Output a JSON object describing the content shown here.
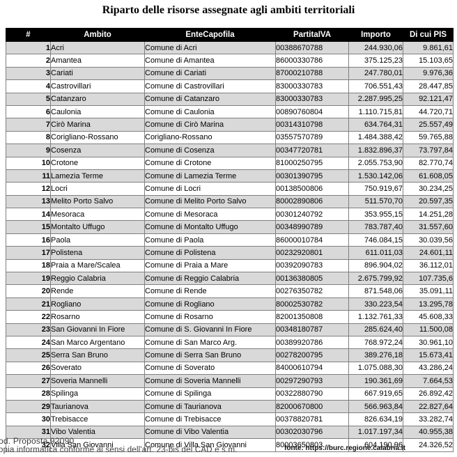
{
  "page": {
    "title": "Riparto delle risorse assegnate agli ambiti territoriali"
  },
  "table": {
    "columns": [
      "#",
      "Ambito",
      "EnteCapofila",
      "PartitaIVA",
      "Importo",
      "Di cui PIS"
    ],
    "rows": [
      [
        "1",
        "Acri",
        "Comune di Acri",
        "00388670788",
        "244.930,06",
        "9.861,61"
      ],
      [
        "2",
        "Amantea",
        "Comune di Amantea",
        "86000330786",
        "375.125,23",
        "15.103,65"
      ],
      [
        "3",
        "Cariati",
        "Comune di Cariati",
        "87000210788",
        "247.780,01",
        "9.976,36"
      ],
      [
        "4",
        "Castrovillari",
        "Comune di Castrovillari",
        "83000330783",
        "706.551,43",
        "28.447,85"
      ],
      [
        "5",
        "Catanzaro",
        "Comune di Catanzaro",
        "83000330783",
        "2.287.995,25",
        "92.121,47"
      ],
      [
        "6",
        "Caulonia",
        "Comune di Caulonia",
        "00890760804",
        "1.110.715,81",
        "44.720,71"
      ],
      [
        "7",
        "Cirò Marina",
        "Comune di Cirò Marina",
        "00314310798",
        "634.764,31",
        "25.557,49"
      ],
      [
        "8",
        "Corigliano-Rossano",
        "Corigliano-Rossano",
        "03557570789",
        "1.484.388,42",
        "59.765,88"
      ],
      [
        "9",
        "Cosenza",
        "Comune di Cosenza",
        "00347720781",
        "1.832.896,37",
        "73.797,84"
      ],
      [
        "10",
        "Crotone",
        "Comune di Crotone",
        "81000250795",
        "2.055.753,90",
        "82.770,74"
      ],
      [
        "11",
        "Lamezia Terme",
        "Comune di Lamezia Terme",
        "00301390795",
        "1.530.142,06",
        "61.608,05"
      ],
      [
        "12",
        "Locri",
        "Comune di Locri",
        "00138500806",
        "750.919,67",
        "30.234,25"
      ],
      [
        "13",
        "Melito Porto Salvo",
        "Comune di Melito Porto Salvo",
        "80002890806",
        "511.570,70",
        "20.597,35"
      ],
      [
        "14",
        "Mesoraca",
        "Comune di Mesoraca",
        "00301240792",
        "353.955,15",
        "14.251,28"
      ],
      [
        "15",
        "Montalto Uffugo",
        "Comune di Montalto Uffugo",
        "00348990789",
        "783.787,40",
        "31.557,60"
      ],
      [
        "16",
        "Paola",
        "Comune di Paola",
        "86000010784",
        "746.084,15",
        "30.039,56"
      ],
      [
        "17",
        "Polistena",
        "Comune di Polistena",
        "00232920801",
        "611.011,03",
        "24.601,11"
      ],
      [
        "18",
        "Praia a Mare/Scalea",
        "Comune di Praia a Mare",
        "00392090783",
        "896.904,02",
        "36.112,01"
      ],
      [
        "19",
        "Reggio Calabria",
        "Comune di Reggio Calabria",
        "00136380805",
        "2.675.799,92",
        "107.735,6"
      ],
      [
        "20",
        "Rende",
        "Comune di Rende",
        "00276350782",
        "871.548,06",
        "35.091,11"
      ],
      [
        "21",
        "Rogliano",
        "Comune di Rogliano",
        "80002530782",
        "330.223,54",
        "13.295,78"
      ],
      [
        "22",
        "Rosarno",
        "Comune di Rosarno",
        "82001350808",
        "1.132.761,33",
        "45.608,33"
      ],
      [
        "23",
        "San Giovanni In Fiore",
        "Comune di S. Giovanni In Fiore",
        "00348180787",
        "285.624,40",
        "11.500,08"
      ],
      [
        "24",
        "San Marco Argentano",
        "Comune di San Marco Arg.",
        "00389920786",
        "768.972,24",
        "30.961,10"
      ],
      [
        "25",
        "Serra San Bruno",
        "Comune di Serra San Bruno",
        "00278200795",
        "389.276,18",
        "15.673,41"
      ],
      [
        "26",
        "Soverato",
        "Comune di Soverato",
        "84000610794",
        "1.075.088,30",
        "43.286,24"
      ],
      [
        "27",
        "Soveria Mannelli",
        "Comune di Soveria Mannelli",
        "00297290793",
        "190.361,69",
        "7.664,53"
      ],
      [
        "28",
        "Spilinga",
        "Comune di Spilinga",
        "00322880790",
        "667.919,65",
        "26.892,42"
      ],
      [
        "29",
        "Taurianova",
        "Comune di Taurianova",
        "82000670800",
        "566.963,84",
        "22.827,64"
      ],
      [
        "30",
        "Trebisacce",
        "Comune di Trebisacce",
        "00378820781",
        "826.634,19",
        "33.282,74"
      ],
      [
        "31",
        "Vibo Valentia",
        "Comune di Vibo Valentia",
        "00302030796",
        "1.017.197,34",
        "40.955,38"
      ],
      [
        "32",
        "Villa San Giovanni",
        "Comune di Villa San Giovanni",
        "80003650803",
        "604.190,96",
        "24.326,52"
      ]
    ]
  },
  "footer": {
    "stamp_line1": "od. Proposta 92090",
    "stamp_line2": "opia informatica conforme ai sensi dell'art. 23-bis del CAD e s.m.",
    "source": "fonte: https://burc.regione.calabria.it"
  },
  "colors": {
    "header_bg": "#000000",
    "header_text": "#ffffff",
    "row_alt_bg": "#d9d9d9",
    "border": "#7f7f7f"
  }
}
